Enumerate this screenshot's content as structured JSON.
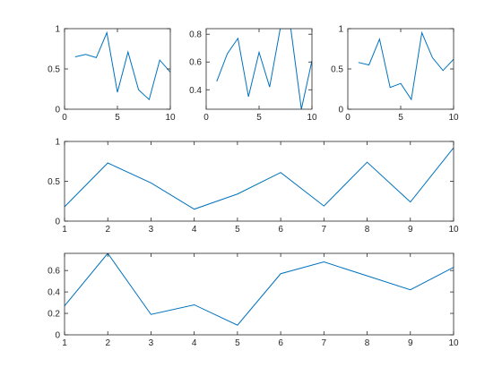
{
  "chart_data": [
    {
      "type": "line",
      "x": [
        1,
        2,
        3,
        4,
        5,
        6,
        7,
        8,
        9,
        10
      ],
      "series": [
        {
          "color": "#0072bd",
          "values": [
            0.65,
            0.68,
            0.64,
            0.95,
            0.21,
            0.71,
            0.24,
            0.12,
            0.61,
            0.46
          ]
        }
      ],
      "xlim": [
        0,
        10
      ],
      "xticks": [
        0,
        5,
        10
      ],
      "ylim": [
        0,
        1
      ],
      "yticks": [
        0,
        0.5,
        1
      ]
    },
    {
      "type": "line",
      "x": [
        1,
        2,
        3,
        4,
        5,
        6,
        7,
        8,
        9,
        10
      ],
      "series": [
        {
          "color": "#0072bd",
          "values": [
            0.46,
            0.66,
            0.77,
            0.35,
            0.67,
            0.42,
            0.84,
            0.84,
            0.26,
            0.61
          ]
        }
      ],
      "xlim": [
        0,
        10
      ],
      "xticks": [
        0,
        5,
        10
      ],
      "ylim": [
        0.26,
        0.84
      ],
      "yticks": [
        0.4,
        0.6,
        0.8
      ]
    },
    {
      "type": "line",
      "x": [
        1,
        2,
        3,
        4,
        5,
        6,
        7,
        8,
        9,
        10
      ],
      "series": [
        {
          "color": "#0072bd",
          "values": [
            0.58,
            0.55,
            0.87,
            0.27,
            0.32,
            0.12,
            0.95,
            0.64,
            0.48,
            0.62
          ]
        }
      ],
      "xlim": [
        0,
        10
      ],
      "xticks": [
        0,
        5,
        10
      ],
      "ylim": [
        0,
        1
      ],
      "yticks": [
        0,
        0.5,
        1
      ]
    },
    {
      "type": "line",
      "x": [
        1,
        2,
        3,
        4,
        5,
        6,
        7,
        8,
        9,
        10
      ],
      "series": [
        {
          "color": "#0072bd",
          "values": [
            0.18,
            0.73,
            0.48,
            0.15,
            0.34,
            0.61,
            0.19,
            0.74,
            0.24,
            0.92
          ]
        }
      ],
      "xlim": [
        1,
        10
      ],
      "xticks": [
        1,
        2,
        3,
        4,
        5,
        6,
        7,
        8,
        9,
        10
      ],
      "ylim": [
        0,
        1
      ],
      "yticks": [
        0,
        0.5,
        1
      ]
    },
    {
      "type": "line",
      "x": [
        1,
        2,
        3,
        4,
        5,
        6,
        7,
        8,
        9,
        10
      ],
      "series": [
        {
          "color": "#0072bd",
          "values": [
            0.27,
            0.76,
            0.19,
            0.28,
            0.09,
            0.57,
            0.68,
            0.55,
            0.42,
            0.63
          ]
        }
      ],
      "xlim": [
        1,
        10
      ],
      "xticks": [
        1,
        2,
        3,
        4,
        5,
        6,
        7,
        8,
        9,
        10
      ],
      "ylim": [
        0,
        0.76
      ],
      "yticks": [
        0,
        0.2,
        0.4,
        0.6
      ]
    }
  ]
}
